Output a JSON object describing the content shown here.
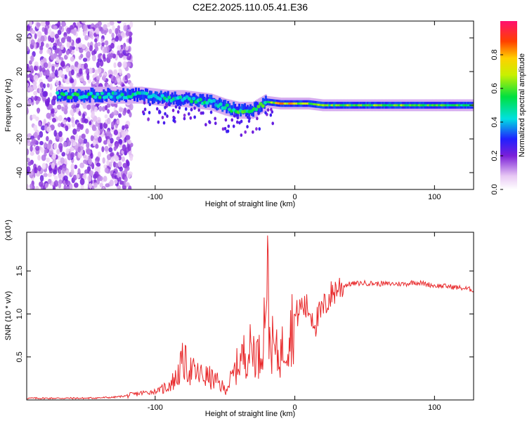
{
  "title": "C2E2.2025.110.05.41.E36",
  "chart_data": [
    {
      "type": "heatmap",
      "xlabel": "Height of straight line (km)",
      "ylabel": "Frequency (Hz)",
      "xlim": [
        -192,
        128
      ],
      "ylim": [
        -50,
        50
      ],
      "xticks": [
        -100,
        0,
        100
      ],
      "yticks": [
        -40,
        -20,
        0,
        20,
        40
      ],
      "colorbar": {
        "label": "Normalized spectral amplitude",
        "range": [
          0,
          1
        ],
        "ticks": [
          "0.0",
          "0.2",
          "0.4",
          "0.6",
          "0.8"
        ]
      },
      "ridge": [
        {
          "x": -170,
          "y": 6,
          "a": 0.55
        },
        {
          "x": -150,
          "y": 6,
          "a": 0.55
        },
        {
          "x": -130,
          "y": 6,
          "a": 0.5
        },
        {
          "x": -110,
          "y": 6,
          "a": 0.5
        },
        {
          "x": -100,
          "y": 5,
          "a": 0.5
        },
        {
          "x": -90,
          "y": 4,
          "a": 0.5
        },
        {
          "x": -80,
          "y": 4,
          "a": 0.5
        },
        {
          "x": -70,
          "y": 3,
          "a": 0.55
        },
        {
          "x": -60,
          "y": 2,
          "a": 0.5
        },
        {
          "x": -50,
          "y": -1,
          "a": 0.5
        },
        {
          "x": -40,
          "y": -3,
          "a": 0.6
        },
        {
          "x": -30,
          "y": -3,
          "a": 0.55
        },
        {
          "x": -20,
          "y": 2,
          "a": 0.6
        },
        {
          "x": -10,
          "y": 1,
          "a": 0.85
        },
        {
          "x": 0,
          "y": 1,
          "a": 0.8
        },
        {
          "x": 10,
          "y": 1,
          "a": 0.65
        },
        {
          "x": 20,
          "y": 0,
          "a": 0.65
        },
        {
          "x": 40,
          "y": 0,
          "a": 0.65
        },
        {
          "x": 60,
          "y": 0,
          "a": 0.65
        },
        {
          "x": 80,
          "y": 0,
          "a": 0.65
        },
        {
          "x": 100,
          "y": 0,
          "a": 0.6
        },
        {
          "x": 128,
          "y": 0,
          "a": 0.6
        }
      ]
    },
    {
      "type": "line",
      "xlabel": "Height of straight line (km)",
      "ylabel": "SNR (10 * v/v)",
      "yscale_label": "(x10⁴)",
      "xlim": [
        -192,
        128
      ],
      "ylim": [
        0,
        1.95
      ],
      "xticks": [
        -100,
        0,
        100
      ],
      "yticks": [
        "0.5",
        "1.0",
        "1.5"
      ],
      "ytick_values": [
        0.5,
        1.0,
        1.5
      ],
      "color": "#e8282a",
      "x": [
        -192,
        -170,
        -150,
        -130,
        -120,
        -110,
        -100,
        -92,
        -85,
        -80,
        -75,
        -70,
        -65,
        -60,
        -55,
        -50,
        -45,
        -40,
        -35,
        -30,
        -25,
        -22,
        -20,
        -18,
        -15,
        -12,
        -10,
        -5,
        0,
        5,
        10,
        15,
        20,
        25,
        30,
        35,
        40,
        50,
        60,
        70,
        80,
        85,
        90,
        100,
        110,
        120,
        128
      ],
      "y": [
        0.02,
        0.02,
        0.02,
        0.03,
        0.05,
        0.08,
        0.1,
        0.15,
        0.25,
        0.45,
        0.35,
        0.3,
        0.28,
        0.25,
        0.2,
        0.12,
        0.25,
        0.45,
        0.55,
        0.6,
        0.5,
        0.9,
        1.6,
        0.7,
        0.6,
        0.5,
        0.55,
        0.75,
        0.95,
        1.1,
        1.05,
        0.9,
        1.05,
        1.2,
        1.3,
        1.33,
        1.35,
        1.36,
        1.35,
        1.35,
        1.35,
        1.37,
        1.36,
        1.33,
        1.32,
        1.3,
        1.28
      ]
    }
  ]
}
